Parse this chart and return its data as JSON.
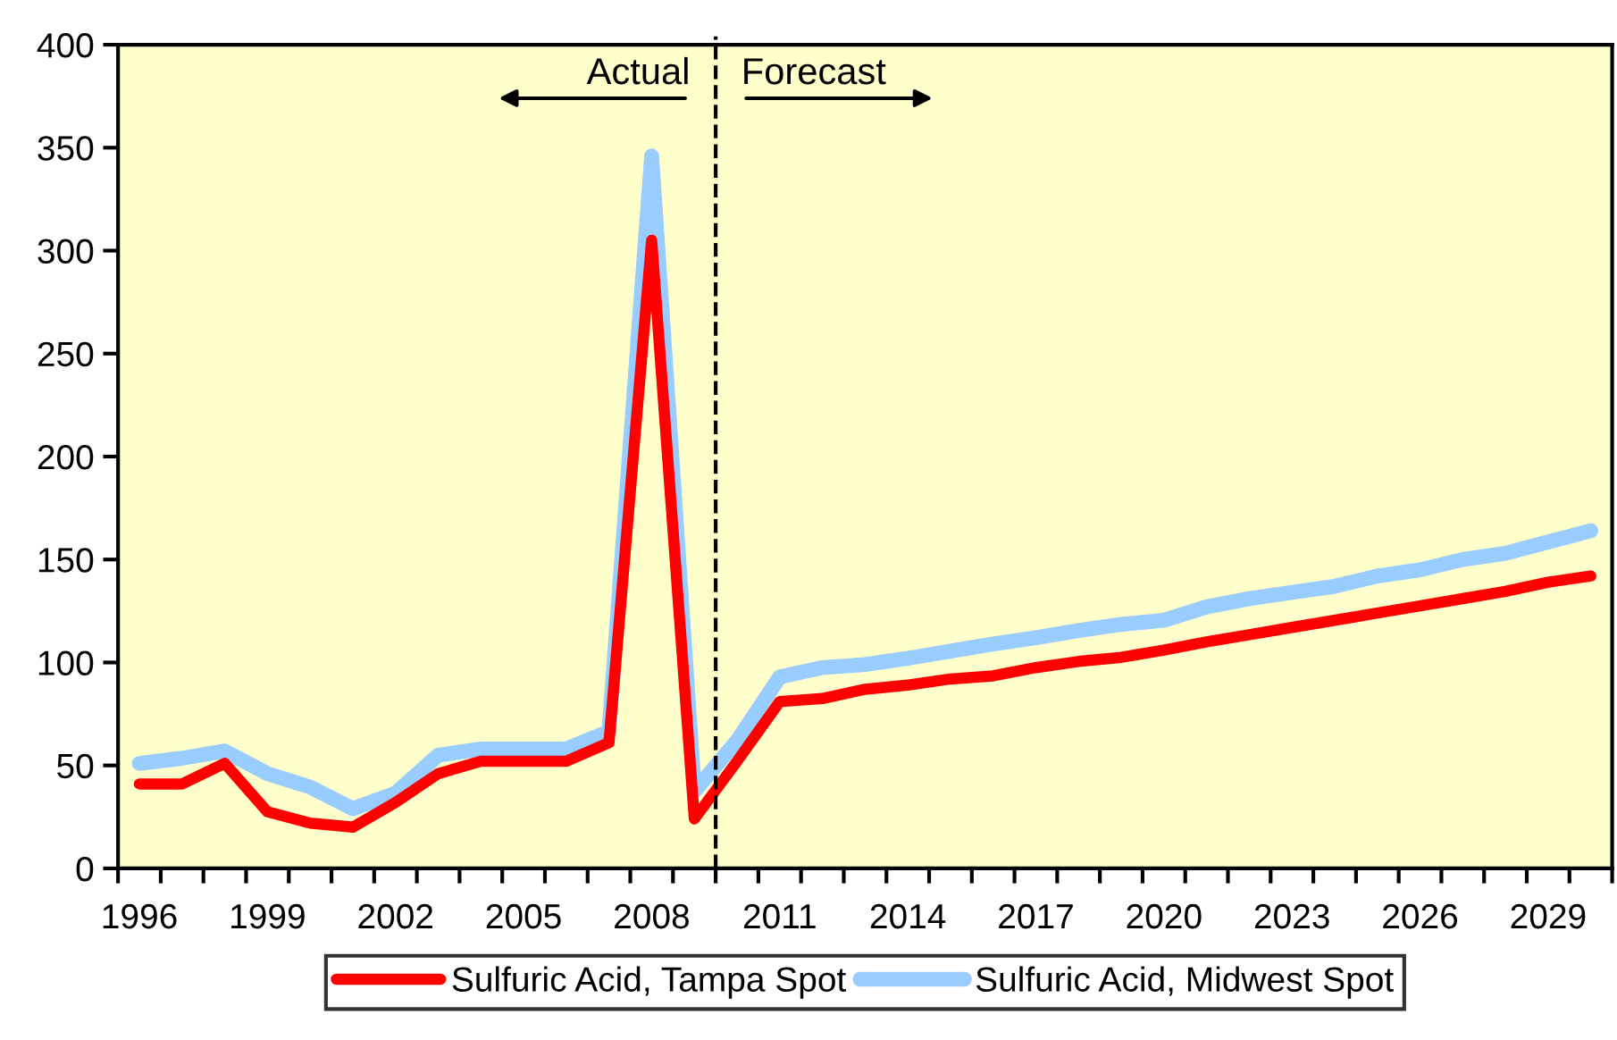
{
  "chart_data": {
    "type": "line",
    "x": [
      1996,
      1997,
      1998,
      1999,
      2000,
      2001,
      2002,
      2003,
      2004,
      2005,
      2006,
      2007,
      2008,
      2009,
      2010,
      2011,
      2012,
      2013,
      2014,
      2015,
      2016,
      2017,
      2018,
      2019,
      2020,
      2021,
      2022,
      2023,
      2024,
      2025,
      2026,
      2027,
      2028,
      2029,
      2030
    ],
    "series": [
      {
        "name": "Sulfuric Acid, Tampa Spot",
        "color": "#ff0000",
        "values": [
          41,
          41,
          51,
          27.5,
          22,
          20,
          32,
          46,
          52,
          52,
          52,
          61,
          305,
          24,
          52,
          81,
          82.5,
          87,
          89,
          92,
          93.5,
          97.5,
          100.5,
          102.5,
          106,
          110,
          113.5,
          117,
          120.5,
          124,
          127.5,
          131,
          134.5,
          139,
          142
        ]
      },
      {
        "name": "Sulfuric Acid, Midwest Spot",
        "color": "#99ccff",
        "values": [
          51,
          53.5,
          57,
          46,
          39.5,
          29,
          36.5,
          55,
          58,
          58,
          58,
          66.5,
          346,
          37.5,
          62,
          93,
          97.5,
          99,
          102,
          105.5,
          109,
          112,
          115.5,
          118.5,
          120.5,
          127,
          131,
          134,
          137,
          142,
          145,
          150,
          153,
          158.5,
          164
        ]
      }
    ],
    "xlim": [
      1995.5,
      2030.5
    ],
    "xticks": [
      1996,
      1999,
      2002,
      2005,
      2008,
      2011,
      2014,
      2017,
      2020,
      2023,
      2026,
      2029
    ],
    "ylim": [
      0,
      400
    ],
    "yticks": [
      0,
      50,
      100,
      150,
      200,
      250,
      300,
      350,
      400
    ],
    "ref_lines": [
      {
        "axis": "x",
        "value": 2009.5,
        "line_style": "dashed",
        "color": "#000000"
      }
    ],
    "annotations": [
      "Actual",
      "Forecast"
    ],
    "legend": "bottom",
    "grid": false,
    "marker": "none",
    "line_style": "solid"
  }
}
